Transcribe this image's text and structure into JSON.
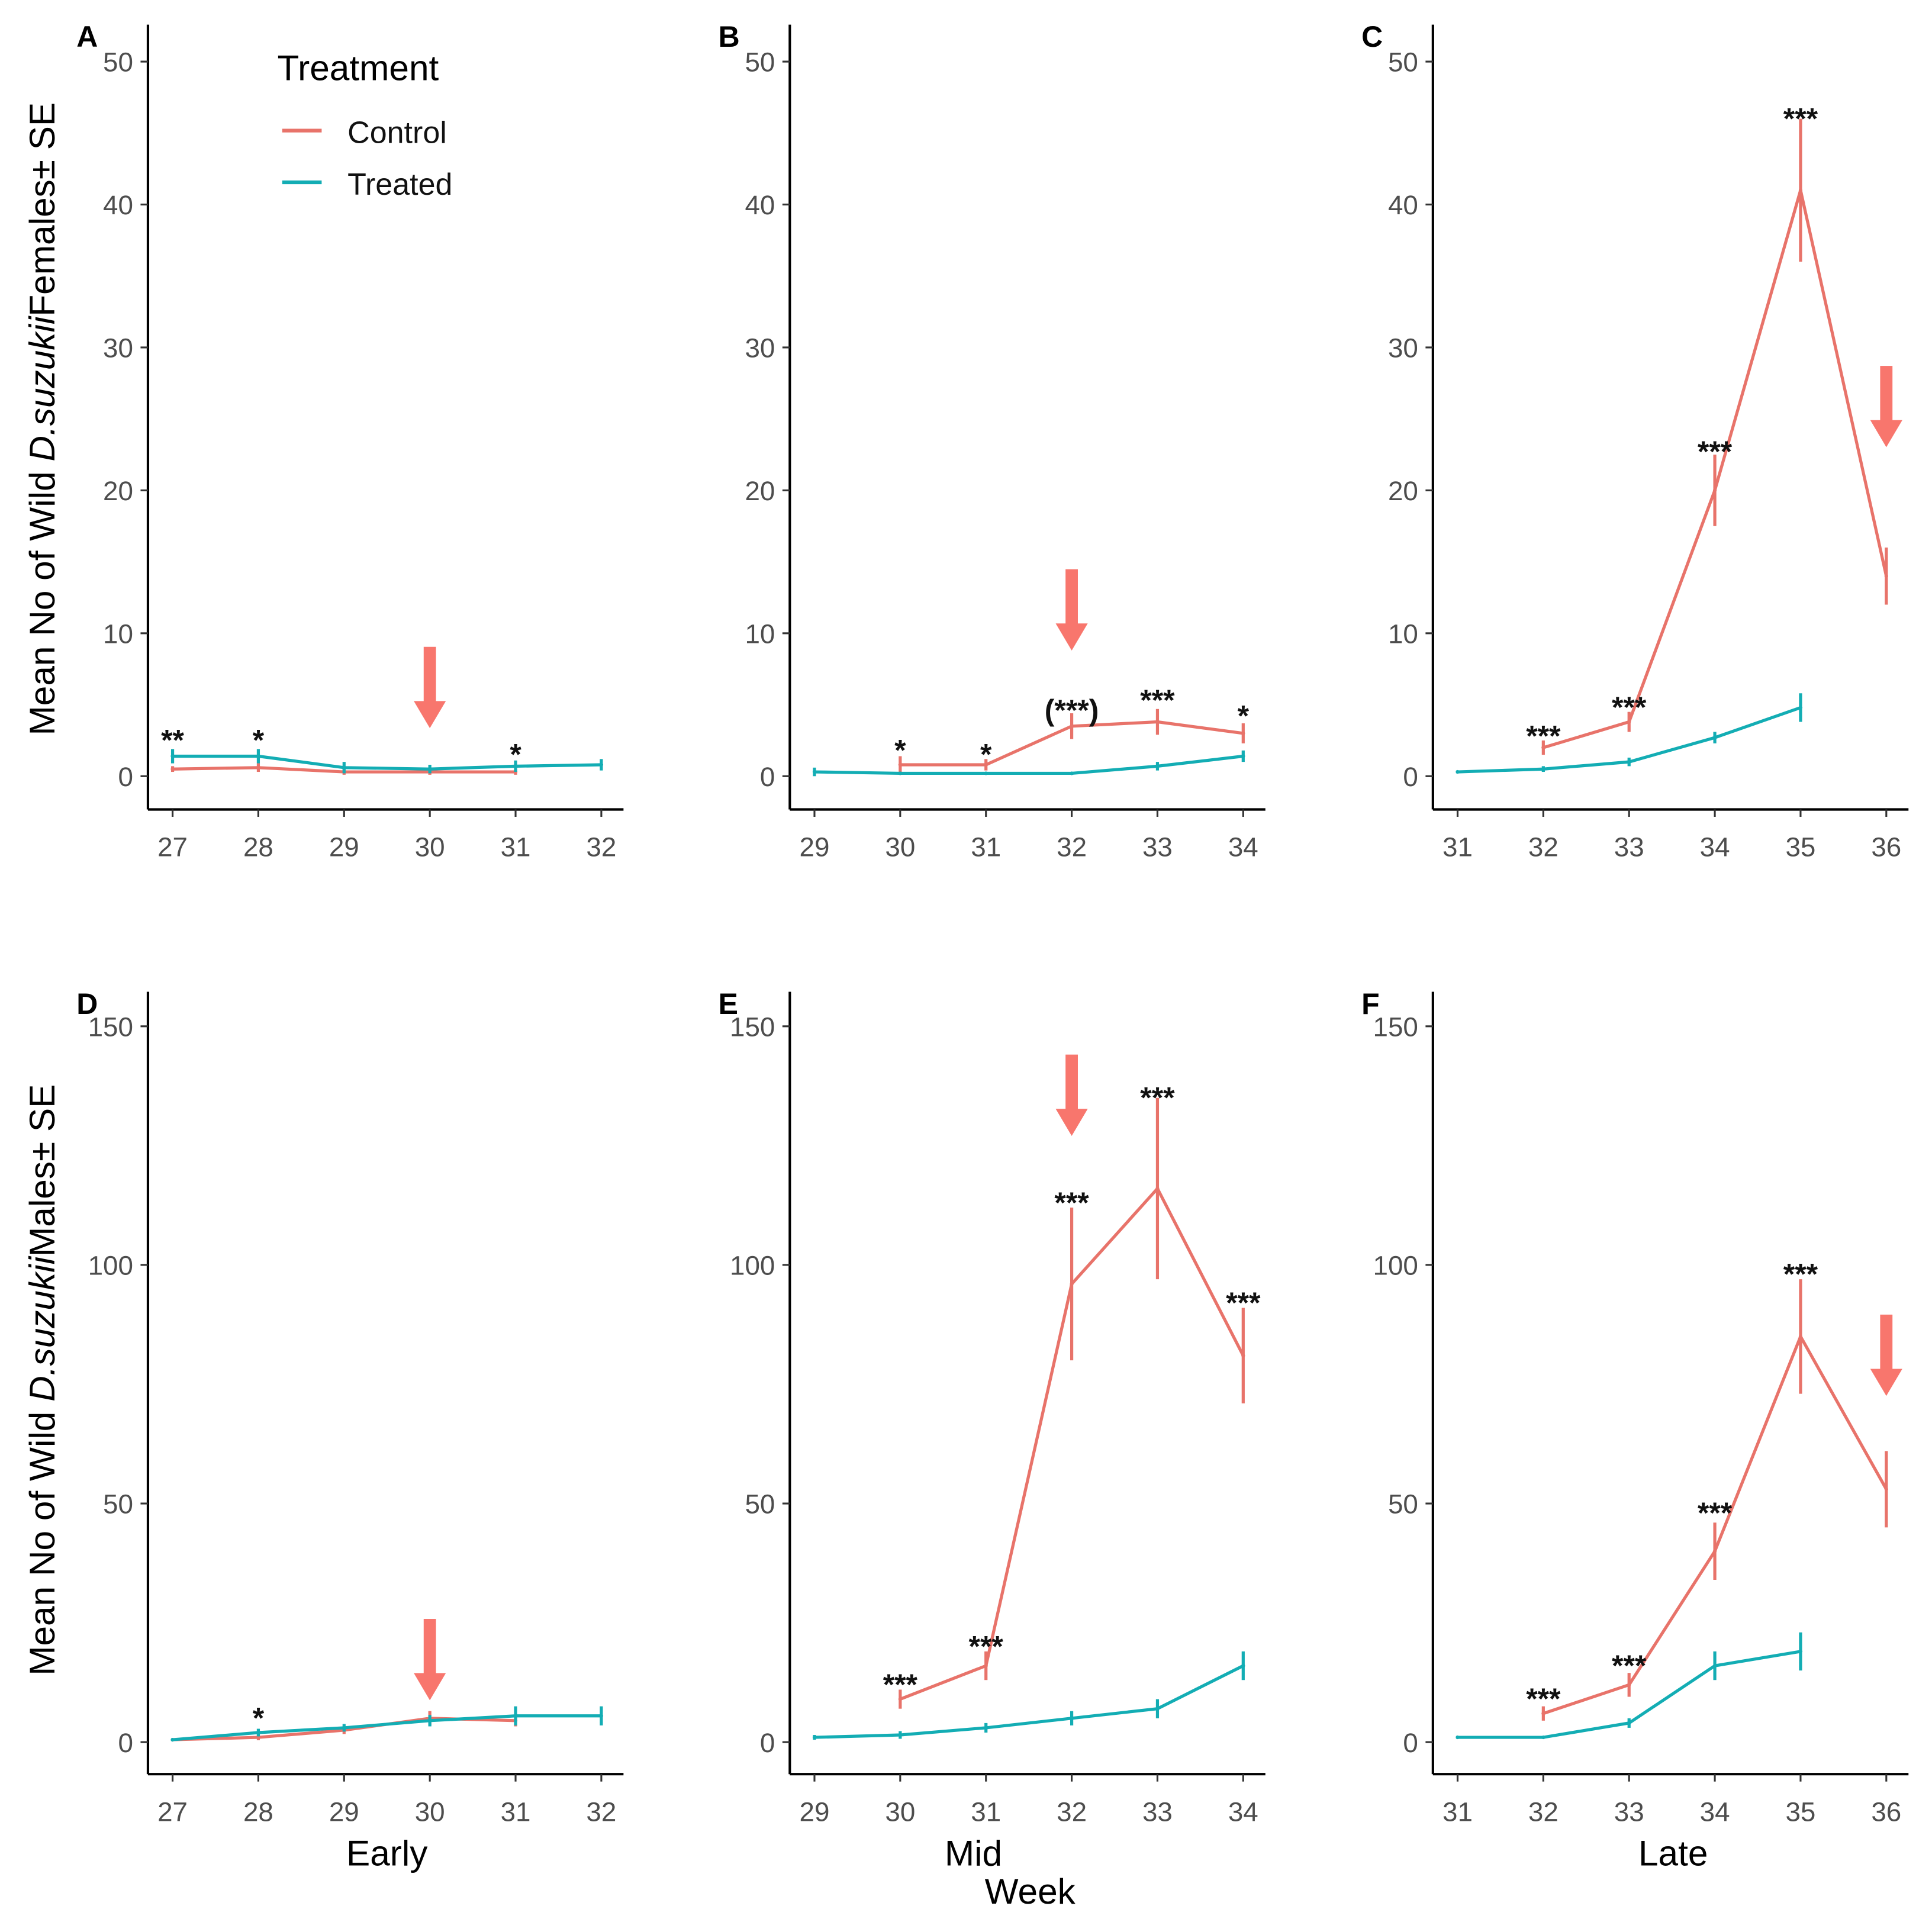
{
  "chart_data": {
    "type": "line",
    "legend": {
      "title": "Treatment",
      "placement": "top-left",
      "entries": [
        "Control",
        "Treated"
      ]
    },
    "colors": {
      "Control": "#E8736A",
      "Treated": "#13ADB4",
      "arrow": "#F8766D"
    },
    "row_ylabels": [
      {
        "pre": "Mean No of Wild ",
        "italic": "D.suzukii",
        "post": "Females± SE"
      },
      {
        "pre": "Mean No of Wild ",
        "italic": "D.suzukii",
        "post": "Males± SE"
      }
    ],
    "column_xlabels": [
      "Early",
      "Mid",
      "Late"
    ],
    "shared_xlabel": "Week",
    "panels": [
      {
        "label": "A",
        "row": 0,
        "col": 0,
        "xlim": [
          27,
          32
        ],
        "ylim": [
          0,
          50
        ],
        "yticks": [
          0,
          10,
          20,
          30,
          40,
          50
        ],
        "arrow_week": 30,
        "series": [
          {
            "name": "Control",
            "x": [
              27,
              28,
              29,
              30,
              31
            ],
            "y": [
              0.5,
              0.6,
              0.3,
              0.3,
              0.3
            ],
            "se": [
              0.2,
              0.3,
              0.2,
              0.2,
              0.2
            ]
          },
          {
            "name": "Treated",
            "x": [
              27,
              28,
              29,
              30,
              31,
              32
            ],
            "y": [
              1.4,
              1.4,
              0.6,
              0.5,
              0.7,
              0.8
            ],
            "se": [
              0.5,
              0.5,
              0.4,
              0.3,
              0.4,
              0.4
            ]
          }
        ],
        "annotations": [
          {
            "x": 27,
            "text": "**",
            "y": 2.5
          },
          {
            "x": 28,
            "text": "*",
            "y": 2.5
          },
          {
            "x": 31,
            "text": "*",
            "y": 1.5
          }
        ]
      },
      {
        "label": "B",
        "row": 0,
        "col": 1,
        "xlim": [
          29,
          34
        ],
        "ylim": [
          0,
          50
        ],
        "yticks": [
          0,
          10,
          20,
          30,
          40,
          50
        ],
        "arrow_week": 32,
        "series": [
          {
            "name": "Control",
            "x": [
              30,
              31,
              32,
              33,
              34
            ],
            "y": [
              0.8,
              0.8,
              3.5,
              3.8,
              3.0
            ],
            "se": [
              0.6,
              0.4,
              0.9,
              0.9,
              0.7
            ]
          },
          {
            "name": "Treated",
            "x": [
              29,
              30,
              31,
              32,
              33,
              34
            ],
            "y": [
              0.3,
              0.2,
              0.2,
              0.2,
              0.7,
              1.4
            ],
            "se": [
              0.3,
              0.1,
              0.1,
              0.1,
              0.3,
              0.4
            ]
          }
        ],
        "annotations": [
          {
            "x": 30,
            "text": "*",
            "y": 1.8
          },
          {
            "x": 31,
            "text": "*",
            "y": 1.5
          },
          {
            "x": 32,
            "text": "(***)",
            "y": 4.6
          },
          {
            "x": 33,
            "text": "***",
            "y": 5.3
          },
          {
            "x": 34,
            "text": "*",
            "y": 4.2
          }
        ]
      },
      {
        "label": "C",
        "row": 0,
        "col": 2,
        "xlim": [
          31,
          36
        ],
        "ylim": [
          0,
          50
        ],
        "yticks": [
          0,
          10,
          20,
          30,
          40,
          50
        ],
        "arrow_week": 36,
        "series": [
          {
            "name": "Control",
            "x": [
              32,
              33,
              34,
              35,
              36
            ],
            "y": [
              2.0,
              3.8,
              20,
              41,
              14
            ],
            "se": [
              0.5,
              0.7,
              2.5,
              5,
              2
            ]
          },
          {
            "name": "Treated",
            "x": [
              31,
              32,
              33,
              34,
              35
            ],
            "y": [
              0.3,
              0.5,
              1.0,
              2.7,
              4.8
            ],
            "se": [
              0.1,
              0.2,
              0.3,
              0.4,
              1.0
            ]
          }
        ],
        "annotations": [
          {
            "x": 32,
            "text": "***",
            "y": 2.8
          },
          {
            "x": 33,
            "text": "***",
            "y": 4.8
          },
          {
            "x": 34,
            "text": "***",
            "y": 22.7
          },
          {
            "x": 35,
            "text": "***",
            "y": 46
          }
        ]
      },
      {
        "label": "D",
        "row": 1,
        "col": 0,
        "xlim": [
          27,
          32
        ],
        "ylim": [
          0,
          150
        ],
        "yticks": [
          0,
          50,
          100,
          150
        ],
        "arrow_week": 30,
        "series": [
          {
            "name": "Control",
            "x": [
              27,
              28,
              29,
              30,
              31
            ],
            "y": [
              0.5,
              1.0,
              2.5,
              5.0,
              4.5
            ],
            "se": [
              0.3,
              0.6,
              0.8,
              1.5,
              1.2
            ]
          },
          {
            "name": "Treated",
            "x": [
              27,
              28,
              29,
              30,
              31,
              32
            ],
            "y": [
              0.5,
              2.0,
              3.0,
              4.5,
              5.5,
              5.5
            ],
            "se": [
              0.3,
              0.8,
              0.8,
              1.2,
              2.0,
              2.0
            ]
          }
        ],
        "annotations": [
          {
            "x": 28,
            "text": "*",
            "y": 5
          }
        ]
      },
      {
        "label": "E",
        "row": 1,
        "col": 1,
        "xlim": [
          29,
          34
        ],
        "ylim": [
          0,
          150
        ],
        "yticks": [
          0,
          50,
          100,
          150
        ],
        "arrow_week": 32,
        "series": [
          {
            "name": "Control",
            "x": [
              30,
              31,
              32,
              33,
              34
            ],
            "y": [
              9,
              16,
              96,
              116,
              81
            ],
            "se": [
              2,
              3,
              16,
              19,
              10
            ]
          },
          {
            "name": "Treated",
            "x": [
              29,
              30,
              31,
              32,
              33,
              34
            ],
            "y": [
              1,
              1.5,
              3,
              5,
              7,
              16
            ],
            "se": [
              0.5,
              0.8,
              1,
              1.5,
              2,
              3
            ]
          }
        ],
        "annotations": [
          {
            "x": 30,
            "text": "***",
            "y": 12
          },
          {
            "x": 31,
            "text": "***",
            "y": 20
          },
          {
            "x": 32,
            "text": "***",
            "y": 113
          },
          {
            "x": 33,
            "text": "***",
            "y": 135
          },
          {
            "x": 34,
            "text": "***",
            "y": 92
          }
        ]
      },
      {
        "label": "F",
        "row": 1,
        "col": 2,
        "xlim": [
          31,
          36
        ],
        "ylim": [
          0,
          150
        ],
        "yticks": [
          0,
          50,
          100,
          150
        ],
        "arrow_week": 36,
        "series": [
          {
            "name": "Control",
            "x": [
              32,
              33,
              34,
              35,
              36
            ],
            "y": [
              6,
              12,
              40,
              85,
              53
            ],
            "se": [
              1.5,
              2.5,
              6,
              12,
              8
            ]
          },
          {
            "name": "Treated",
            "x": [
              31,
              32,
              33,
              34,
              35
            ],
            "y": [
              1,
              1,
              4,
              16,
              19
            ],
            "se": [
              0.3,
              0.3,
              1,
              3,
              4
            ]
          }
        ],
        "annotations": [
          {
            "x": 32,
            "text": "***",
            "y": 9
          },
          {
            "x": 33,
            "text": "***",
            "y": 16
          },
          {
            "x": 34,
            "text": "***",
            "y": 48
          },
          {
            "x": 35,
            "text": "***",
            "y": 98
          }
        ]
      }
    ]
  }
}
